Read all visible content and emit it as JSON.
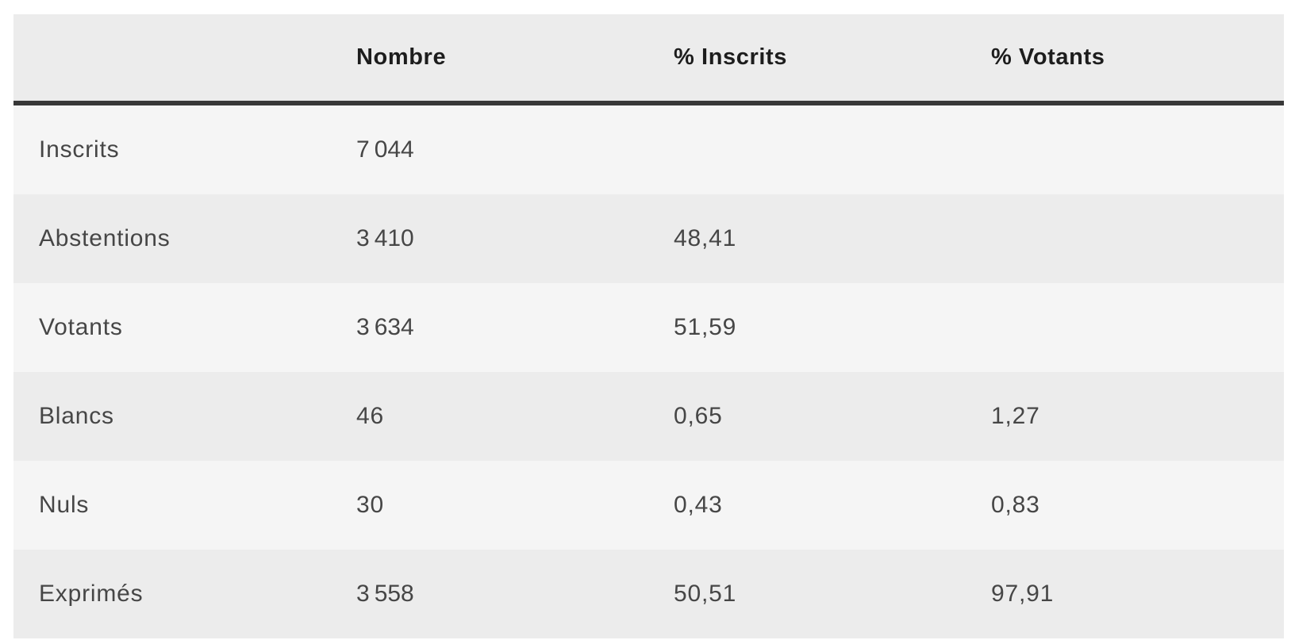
{
  "table": {
    "columns": [
      {
        "key": "label",
        "label": ""
      },
      {
        "key": "nombre",
        "label": "Nombre"
      },
      {
        "key": "pct_inscrits",
        "label": "% Inscrits"
      },
      {
        "key": "pct_votants",
        "label": "% Votants"
      }
    ],
    "rows": [
      {
        "label": "Inscrits",
        "nombre": "7 044",
        "pct_inscrits": "",
        "pct_votants": ""
      },
      {
        "label": "Abstentions",
        "nombre": "3 410",
        "pct_inscrits": "48,41",
        "pct_votants": ""
      },
      {
        "label": "Votants",
        "nombre": "3 634",
        "pct_inscrits": "51,59",
        "pct_votants": ""
      },
      {
        "label": "Blancs",
        "nombre": "46",
        "pct_inscrits": "0,65",
        "pct_votants": "1,27"
      },
      {
        "label": "Nuls",
        "nombre": "30",
        "pct_inscrits": "0,43",
        "pct_votants": "0,83"
      },
      {
        "label": "Exprimés",
        "nombre": "3 558",
        "pct_inscrits": "50,51",
        "pct_votants": "97,91"
      }
    ],
    "colors": {
      "page_bg": "#ffffff",
      "header_bg": "#ececec",
      "row_odd_bg": "#f5f5f5",
      "row_even_bg": "#ececec",
      "header_border": "#383838",
      "header_text": "#1d1d1d",
      "body_text": "#464646"
    }
  },
  "chart_data": {
    "type": "table",
    "columns": [
      "",
      "Nombre",
      "% Inscrits",
      "% Votants"
    ],
    "rows": [
      [
        "Inscrits",
        "7 044",
        "",
        ""
      ],
      [
        "Abstentions",
        "3 410",
        "48,41",
        ""
      ],
      [
        "Votants",
        "3 634",
        "51,59",
        ""
      ],
      [
        "Blancs",
        "46",
        "0,65",
        "1,27"
      ],
      [
        "Nuls",
        "30",
        "0,43",
        "0,83"
      ],
      [
        "Exprimés",
        "3 558",
        "50,51",
        "97,91"
      ]
    ],
    "numeric_rows": [
      {
        "label": "Inscrits",
        "nombre": 7044,
        "pct_inscrits": null,
        "pct_votants": null
      },
      {
        "label": "Abstentions",
        "nombre": 3410,
        "pct_inscrits": 48.41,
        "pct_votants": null
      },
      {
        "label": "Votants",
        "nombre": 3634,
        "pct_inscrits": 51.59,
        "pct_votants": null
      },
      {
        "label": "Blancs",
        "nombre": 46,
        "pct_inscrits": 0.65,
        "pct_votants": 1.27
      },
      {
        "label": "Nuls",
        "nombre": 30,
        "pct_inscrits": 0.43,
        "pct_votants": 0.83
      },
      {
        "label": "Exprimés",
        "nombre": 3558,
        "pct_inscrits": 50.51,
        "pct_votants": 97.91
      }
    ]
  }
}
